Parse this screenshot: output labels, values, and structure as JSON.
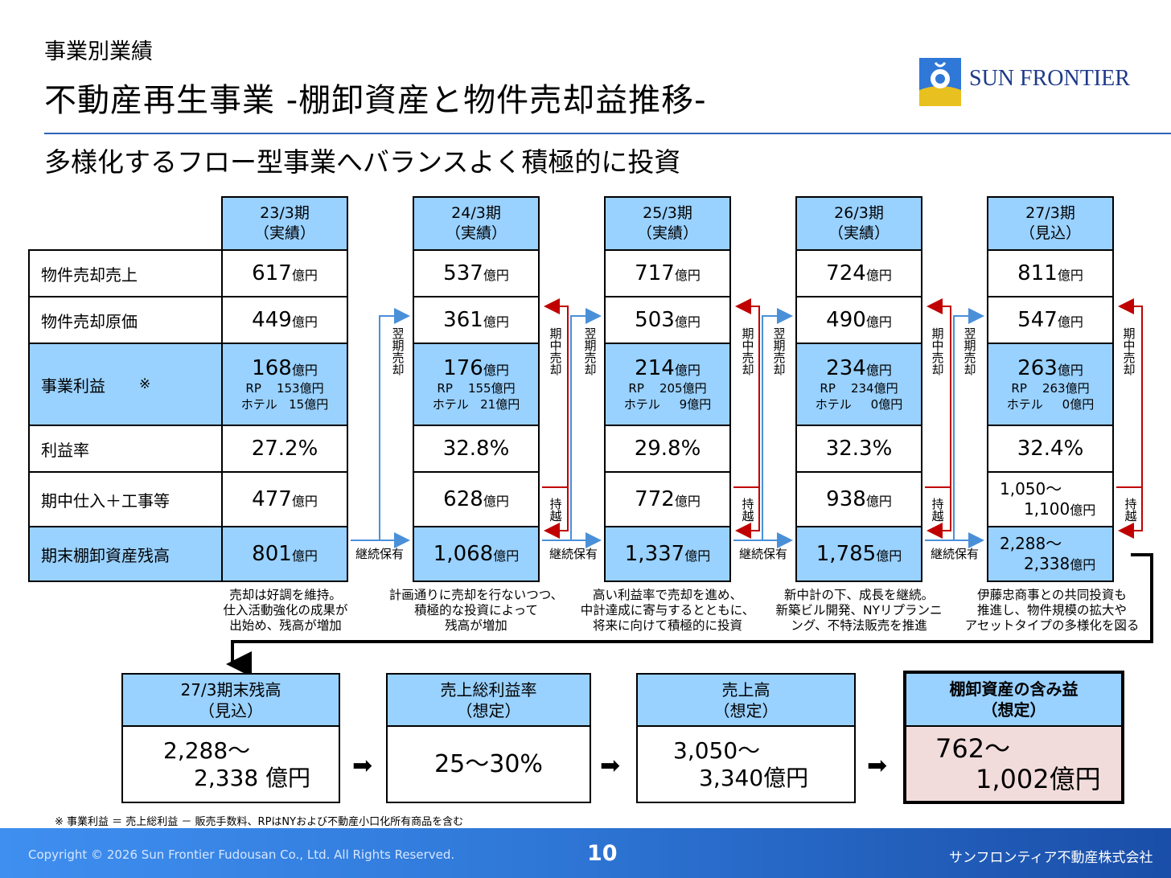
{
  "header": {
    "section_label": "事業別業績",
    "title": "不動産再生事業 ‐棚卸資産と物件売却益推移‐",
    "subtitle": "多様化するフロー型事業へバランスよく積極的に投資",
    "logo_text": "SUN FRONTIER"
  },
  "table": {
    "row_labels": [
      "物件売却売上",
      "物件売却原価",
      "事業利益",
      "※",
      "利益率",
      "期中仕入＋工事等",
      "期末棚卸資産残高"
    ],
    "unit": "億円",
    "columns": [
      {
        "period": "23/3期",
        "status": "（実績）",
        "sales": "617",
        "cost": "449",
        "profit": "168",
        "rp": "153億円",
        "hotel": "15億円",
        "margin": "27.2%",
        "purchase": "477",
        "inventory": "801"
      },
      {
        "period": "24/3期",
        "status": "（実績）",
        "sales": "537",
        "cost": "361",
        "profit": "176",
        "rp": "155億円",
        "hotel": "21億円",
        "margin": "32.8%",
        "purchase": "628",
        "inventory": "1,068"
      },
      {
        "period": "25/3期",
        "status": "（実績）",
        "sales": "717",
        "cost": "503",
        "profit": "214",
        "rp": "205億円",
        "hotel": "9億円",
        "margin": "29.8%",
        "purchase": "772",
        "inventory": "1,337"
      },
      {
        "period": "26/3期",
        "status": "（実績）",
        "sales": "724",
        "cost": "490",
        "profit": "234",
        "rp": "234億円",
        "hotel": "0億円",
        "margin": "32.3%",
        "purchase": "938",
        "inventory": "1,785"
      },
      {
        "period": "27/3期",
        "status": "（見込）",
        "sales": "811",
        "cost": "547",
        "profit": "263",
        "rp": "263億円",
        "hotel": "0億円",
        "margin": "32.4%",
        "purchase_l1": "1,050～",
        "purchase_l2": "1,100",
        "inventory_l1": "2,288～",
        "inventory_l2": "2,338"
      }
    ],
    "rp_label": "RP",
    "hotel_label": "ホテル",
    "notes": [
      [
        "売却は好調を維持。",
        "仕入活動強化の成果が",
        "出始め、残高が増加"
      ],
      [
        "計画通りに売却を行ないつつ、",
        "積極的な投資によって",
        "残高が増加"
      ],
      [
        "高い利益率で売却を進め、",
        "中計達成に寄与するとともに、",
        "将来に向けて積極的に投資"
      ],
      [
        "新中計の下、成長を継続。",
        "新築ビル開発、NYリプランニ",
        "ング、不特法販売を推進"
      ],
      [
        "伊藤忠商事との共同投資も",
        "推進し、物件規模の拡大や",
        "アセットタイプの多様化を図る"
      ]
    ],
    "flow_labels": {
      "next_sale": "翌期売却",
      "mid_sale": "期中売却",
      "carry": "持越",
      "continue": "継続保有"
    }
  },
  "summary": [
    {
      "title": "27/3期末残高",
      "subtitle": "（見込）",
      "value_l1": "2,288～",
      "value_l2": "2,338 億円"
    },
    {
      "title": "売上総利益率",
      "subtitle": "（想定）",
      "value_l1": "25～30%",
      "value_l2": ""
    },
    {
      "title": "売上高",
      "subtitle": "（想定）",
      "value_l1": "3,050～",
      "value_l2": "3,340億円"
    },
    {
      "title": "棚卸資産の含み益",
      "subtitle": "（想定）",
      "value_l1": "762～",
      "value_l2": "1,002億円"
    }
  ],
  "footnote": "※ 事業利益 ＝ 売上総利益 － 販売手数料、RPはNYおよび不動産小口化所有商品を含む",
  "footer": {
    "copyright": "Copyright © 2026 Sun Frontier Fudousan Co., Ltd. All Rights Reserved.",
    "page_number": "10",
    "company": "サンフロンティア不動産株式会社"
  },
  "colors": {
    "header_blue": "#99d1ff",
    "accent_blue": "#2e63b8",
    "flow_red": "#c00000",
    "flow_blue": "#4a90d9",
    "highlight_pink": "#f2dcdb"
  }
}
